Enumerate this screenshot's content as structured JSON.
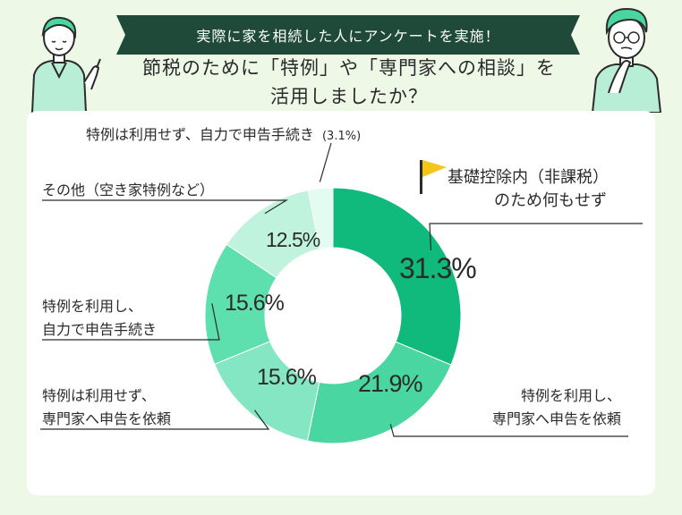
{
  "banner": {
    "text": "実際に家を相続した人にアンケートを実施！"
  },
  "title": {
    "line1": "節税のために「特例」や「専門家への相談」を",
    "line2": "活用しましたか？"
  },
  "colors": {
    "background": "#eef8e6",
    "banner": "#1f4a3a",
    "flag": "#f5c518",
    "segments": [
      "#0fba7c",
      "#49d6a0",
      "#84e6c3",
      "#5ee0ae",
      "#bff3de",
      "#e3fbf1"
    ]
  },
  "icons": {
    "flag": "flag-icon",
    "person_left": "pointing-person-icon",
    "person_right": "thinking-person-icon"
  },
  "chart_data": {
    "type": "pie",
    "variant": "donut",
    "legend": "callout-labels",
    "slices": [
      {
        "label": "基礎控除内（非課税）のため何もせず",
        "value": 31.3,
        "display": "31.3%"
      },
      {
        "label": "特例を利用し、専門家へ申告を依頼",
        "value": 21.9,
        "display": "21.9%"
      },
      {
        "label": "特例は利用せず、専門家へ申告を依頼",
        "value": 15.6,
        "display": "15.6%"
      },
      {
        "label": "特例を利用し、自力で申告手続き",
        "value": 15.6,
        "display": "15.6%"
      },
      {
        "label": "その他（空き家特例など）",
        "value": 12.5,
        "display": "12.5%"
      },
      {
        "label": "特例は利用せず、自力で申告手続き",
        "value": 3.1,
        "display": "(3.1%)"
      }
    ]
  },
  "labels": {
    "s0_line1": "基礎控除内（非課税）",
    "s0_line2": "のため何もせず",
    "s1_line1": "特例を利用し、",
    "s1_line2": "専門家へ申告を依頼",
    "s2_line1": "特例は利用せず、",
    "s2_line2": "専門家へ申告を依頼",
    "s3_line1": "特例を利用し、",
    "s3_line2": "自力で申告手続き",
    "s4_line1": "その他（空き家特例など）",
    "s5_line1": "特例は利用せず、自力で申告手続き",
    "s5_pct": "(3.1%)"
  }
}
